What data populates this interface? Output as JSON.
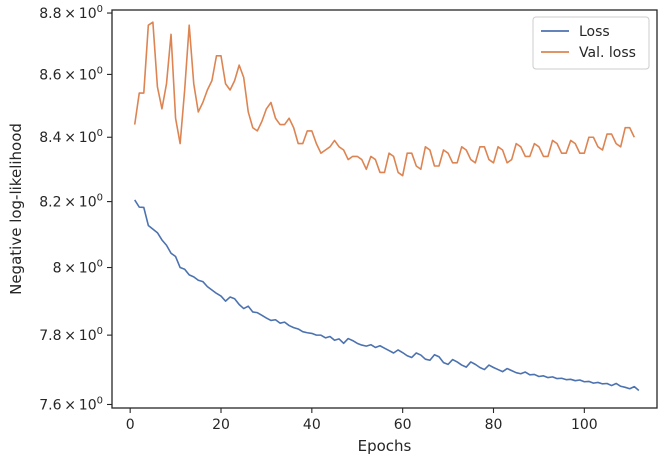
{
  "chart_data": {
    "type": "line",
    "xlabel": "Epochs",
    "ylabel": "Negative log-likelihood",
    "xlim": [
      -4,
      116
    ],
    "ylim": [
      7.59,
      8.81
    ],
    "xticks": [
      0,
      20,
      40,
      60,
      80,
      100
    ],
    "xtick_labels": [
      "0",
      "20",
      "40",
      "60",
      "80",
      "100"
    ],
    "yticks": [
      7.6,
      7.8,
      8.0,
      8.2,
      8.4,
      8.6,
      8.8
    ],
    "ytick_labels": [
      {
        "base": "7.6",
        "exp": "0"
      },
      {
        "base": "7.8",
        "exp": "0"
      },
      {
        "base": "8",
        "exp": "0"
      },
      {
        "base": "8.2",
        "exp": "0"
      },
      {
        "base": "8.4",
        "exp": "0"
      },
      {
        "base": "8.6",
        "exp": "0"
      },
      {
        "base": "8.8",
        "exp": "0"
      }
    ],
    "yscale": "log",
    "grid": false,
    "legend": "upper-right",
    "x_start": 1,
    "series": [
      {
        "name": "Loss",
        "color": "#4c72b0",
        "values": [
          8.205,
          8.183,
          8.182,
          8.127,
          8.116,
          8.105,
          8.083,
          8.067,
          8.043,
          8.033,
          8.0,
          7.995,
          7.978,
          7.972,
          7.962,
          7.958,
          7.943,
          7.933,
          7.923,
          7.915,
          7.9,
          7.912,
          7.907,
          7.89,
          7.878,
          7.885,
          7.868,
          7.866,
          7.858,
          7.85,
          7.843,
          7.845,
          7.835,
          7.838,
          7.828,
          7.822,
          7.818,
          7.81,
          7.807,
          7.805,
          7.8,
          7.8,
          7.792,
          7.796,
          7.785,
          7.789,
          7.776,
          7.79,
          7.784,
          7.776,
          7.771,
          7.768,
          7.772,
          7.764,
          7.769,
          7.762,
          7.755,
          7.748,
          7.757,
          7.749,
          7.74,
          7.735,
          7.748,
          7.742,
          7.73,
          7.727,
          7.743,
          7.737,
          7.72,
          7.715,
          7.729,
          7.722,
          7.713,
          7.707,
          7.722,
          7.715,
          7.706,
          7.7,
          7.713,
          7.706,
          7.7,
          7.694,
          7.703,
          7.697,
          7.691,
          7.688,
          7.693,
          7.685,
          7.686,
          7.68,
          7.682,
          7.677,
          7.679,
          7.674,
          7.675,
          7.671,
          7.672,
          7.668,
          7.67,
          7.665,
          7.666,
          7.661,
          7.663,
          7.659,
          7.66,
          7.654,
          7.66,
          7.652,
          7.649,
          7.645,
          7.651,
          7.64
        ]
      },
      {
        "name": "Val. loss",
        "color": "#dd8452",
        "values": [
          8.44,
          8.54,
          8.54,
          8.76,
          8.77,
          8.56,
          8.49,
          8.57,
          8.73,
          8.46,
          8.38,
          8.55,
          8.76,
          8.57,
          8.48,
          8.51,
          8.55,
          8.58,
          8.66,
          8.66,
          8.57,
          8.55,
          8.58,
          8.63,
          8.59,
          8.48,
          8.43,
          8.42,
          8.45,
          8.49,
          8.51,
          8.46,
          8.44,
          8.44,
          8.46,
          8.43,
          8.38,
          8.38,
          8.42,
          8.42,
          8.38,
          8.35,
          8.36,
          8.37,
          8.39,
          8.37,
          8.36,
          8.33,
          8.34,
          8.34,
          8.33,
          8.3,
          8.34,
          8.33,
          8.29,
          8.29,
          8.35,
          8.34,
          8.29,
          8.28,
          8.35,
          8.35,
          8.31,
          8.3,
          8.37,
          8.36,
          8.31,
          8.31,
          8.36,
          8.35,
          8.32,
          8.32,
          8.37,
          8.36,
          8.33,
          8.32,
          8.37,
          8.37,
          8.33,
          8.32,
          8.37,
          8.36,
          8.32,
          8.33,
          8.38,
          8.37,
          8.34,
          8.34,
          8.38,
          8.37,
          8.34,
          8.34,
          8.39,
          8.38,
          8.35,
          8.35,
          8.39,
          8.38,
          8.35,
          8.35,
          8.4,
          8.4,
          8.37,
          8.36,
          8.41,
          8.41,
          8.38,
          8.37,
          8.43,
          8.43,
          8.4
        ]
      }
    ]
  }
}
